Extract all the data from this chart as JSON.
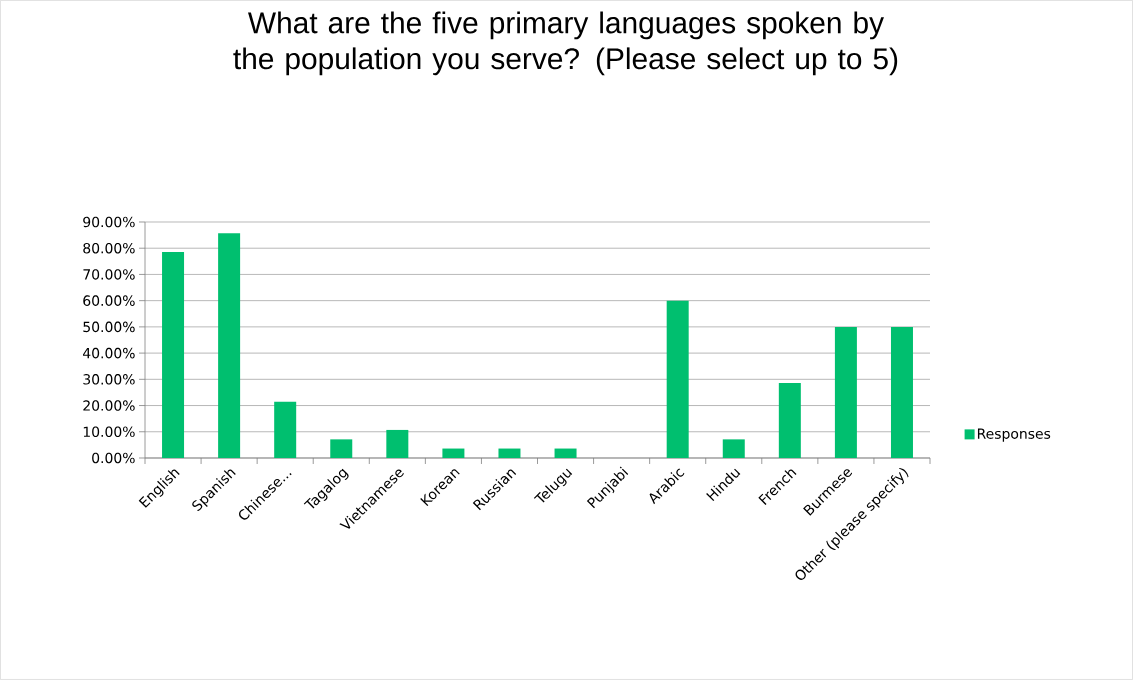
{
  "chart_data": {
    "type": "bar",
    "title": "What are the five primary languages spoken by the population you serve? (Please select up to 5)",
    "categories": [
      "English",
      "Spanish",
      "Chinese...",
      "Tagalog",
      "Vietnamese",
      "Korean",
      "Russian",
      "Telugu",
      "Punjabi",
      "Arabic",
      "Hindu",
      "French",
      "Burmese",
      "Other (please specify)"
    ],
    "series": [
      {
        "name": "Responses",
        "color": "#00bf6f",
        "values": [
          78.6,
          85.7,
          21.4,
          7.1,
          10.7,
          3.6,
          3.6,
          3.6,
          0,
          60,
          7.1,
          28.6,
          50,
          50
        ]
      }
    ],
    "ylim": [
      0,
      90
    ],
    "yticks": [
      {
        "value": 0,
        "label": "0.00%"
      },
      {
        "value": 10,
        "label": "10.00%"
      },
      {
        "value": 20,
        "label": "20.00%"
      },
      {
        "value": 30,
        "label": "30.00%"
      },
      {
        "value": 40,
        "label": "40.00%"
      },
      {
        "value": 50,
        "label": "50.00%"
      },
      {
        "value": 60,
        "label": "60.00%"
      },
      {
        "value": 70,
        "label": "70.00%"
      },
      {
        "value": 80,
        "label": "80.00%"
      },
      {
        "value": 90,
        "label": "90.00%"
      }
    ],
    "grid": "y",
    "legend": "right"
  }
}
